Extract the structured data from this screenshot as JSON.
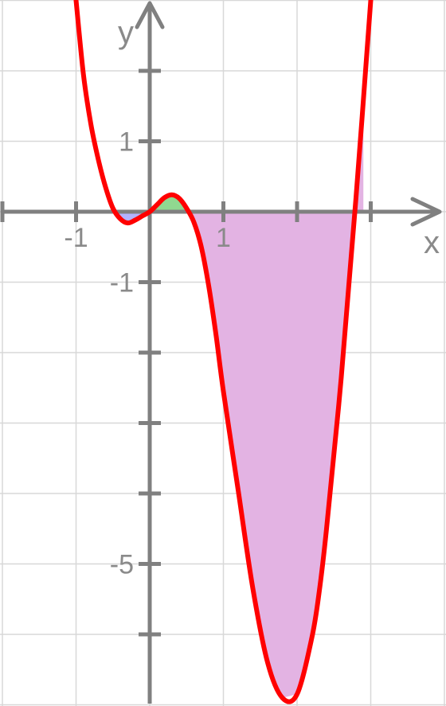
{
  "chart_data": {
    "type": "line",
    "title": "",
    "xlabel": "x",
    "ylabel": "y",
    "xlim": [
      -1.0,
      3.0
    ],
    "ylim": [
      -7.0,
      3.0
    ],
    "grid": true,
    "grid_step": 1,
    "x_tick_labels": [
      {
        "value": -1,
        "text": "-1"
      },
      {
        "value": 1,
        "text": "1"
      }
    ],
    "y_tick_labels": [
      {
        "value": 1,
        "text": "1"
      },
      {
        "value": -1,
        "text": "-1"
      },
      {
        "value": -5,
        "text": "-5"
      }
    ],
    "function_points": {
      "x": [
        -1.0,
        -0.9,
        -0.8,
        -0.7,
        -0.6,
        -0.5,
        -0.4,
        -0.3,
        -0.2,
        -0.1,
        0.0,
        0.1,
        0.2,
        0.3,
        0.4,
        0.5,
        0.6,
        0.7,
        0.8,
        0.9,
        1.0,
        1.2,
        1.4,
        1.6,
        1.8,
        2.0,
        2.2,
        2.3,
        2.4,
        2.6,
        2.8,
        3.0
      ],
      "y": [
        3.0,
        1.95,
        1.25,
        0.75,
        0.35,
        0.05,
        -0.1,
        -0.16,
        -0.12,
        -0.06,
        0.0,
        0.1,
        0.2,
        0.24,
        0.19,
        0.05,
        -0.15,
        -0.5,
        -1.05,
        -1.75,
        -2.55,
        -3.95,
        -5.35,
        -6.4,
        -6.9,
        -6.85,
        -6.05,
        -5.4,
        -4.5,
        -2.35,
        0.2,
        3.0
      ]
    },
    "shaded_regions": [
      {
        "x_from": -0.43,
        "x_to": 0.0,
        "color": "#b3b3ff"
      },
      {
        "x_from": 0.0,
        "x_to": 0.5,
        "color": "#90d890"
      },
      {
        "x_from": 0.5,
        "x_to": 2.9,
        "color": "#e3b3e3"
      }
    ],
    "colors": {
      "curve": "#ff0000",
      "axes": "#808080",
      "grid": "#d8d8d8"
    }
  }
}
